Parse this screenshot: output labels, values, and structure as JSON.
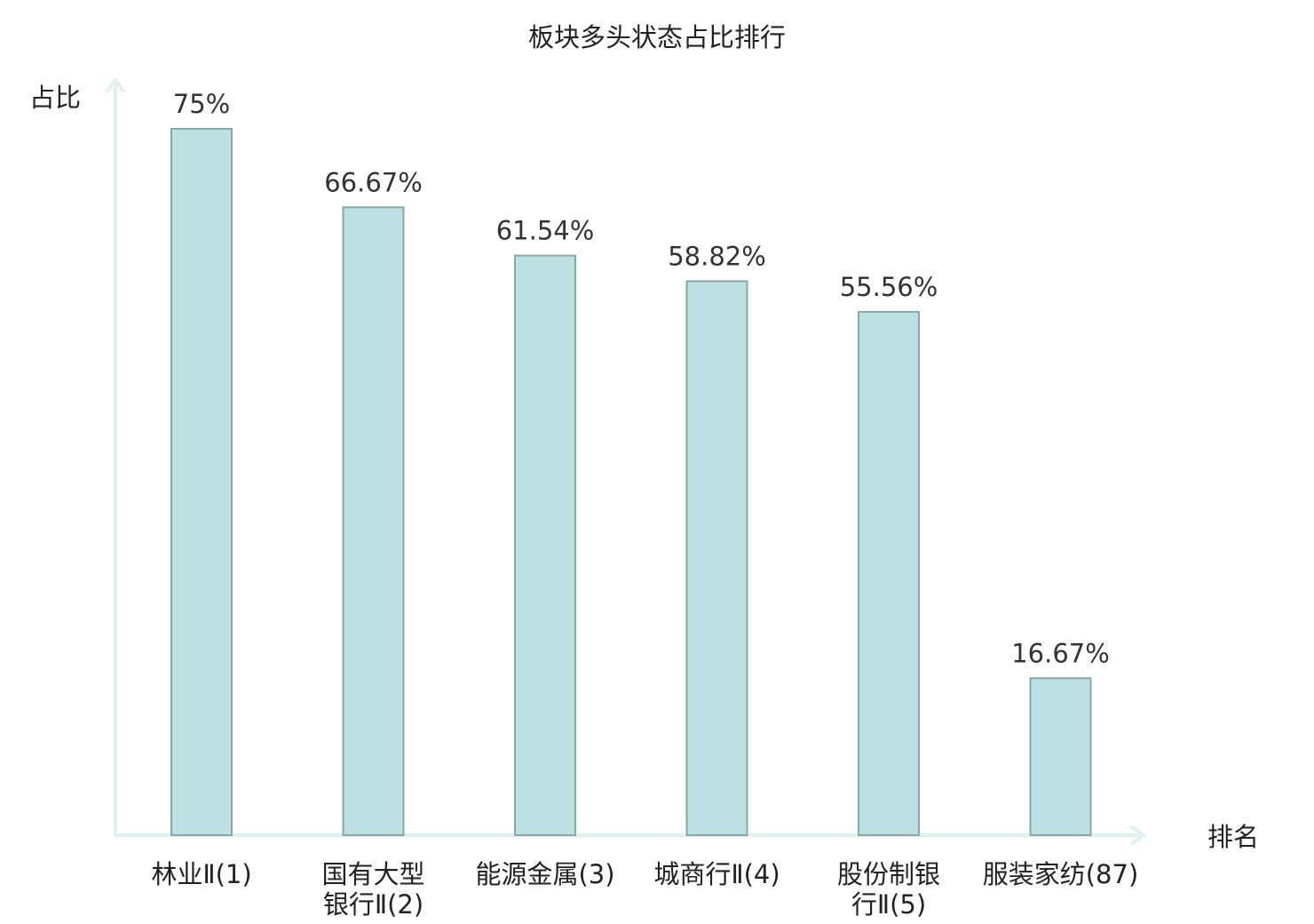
{
  "chart_data": {
    "type": "bar",
    "title": "板块多头状态占比排行",
    "ylabel": "占比",
    "xlabel": "排名",
    "ylim": [
      0,
      100
    ],
    "categories": [
      [
        "林业Ⅱ(1)"
      ],
      [
        "国有大型",
        "银行Ⅱ(2)"
      ],
      [
        "能源金属(3)"
      ],
      [
        "城商行Ⅱ(4)"
      ],
      [
        "股份制银",
        "行Ⅱ(5)"
      ],
      [
        "服装家纺(87)"
      ]
    ],
    "values": [
      75,
      66.67,
      61.54,
      58.82,
      55.56,
      16.67
    ],
    "value_labels": [
      "75%",
      "66.67%",
      "61.54%",
      "58.82%",
      "55.56%",
      "16.67%"
    ],
    "highlight_index": 5,
    "colors": {
      "bar_fill": "#bde1e3",
      "bar_stroke": "#86a8aa",
      "axis": "#dff2ef",
      "highlight_text": "#e02020",
      "text": "#222222"
    }
  }
}
